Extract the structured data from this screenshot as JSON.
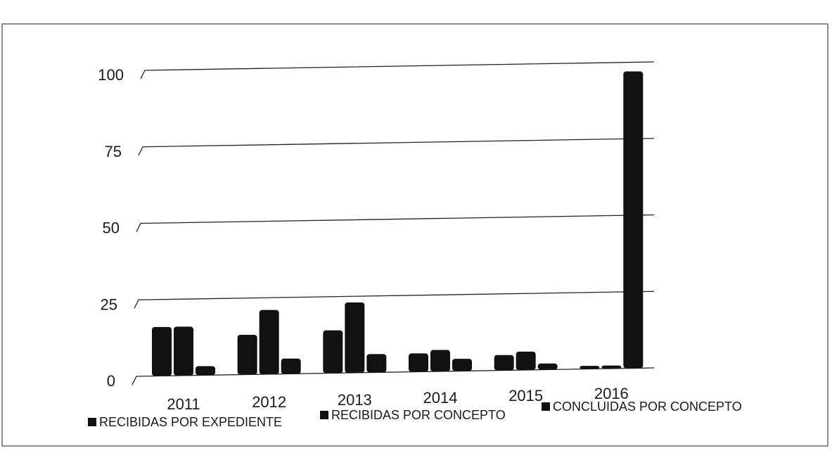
{
  "chart_data": {
    "type": "bar",
    "title": "",
    "xlabel": "",
    "ylabel": "",
    "categories": [
      "2011",
      "2012",
      "2013",
      "2014",
      "2015",
      "2016"
    ],
    "series": [
      {
        "name": "RECIBIDAS POR EXPEDIENTE",
        "values": [
          16,
          13,
          14,
          6,
          5,
          1
        ],
        "color": "#111111"
      },
      {
        "name": "RECIBIDAS POR CONCEPTO",
        "values": [
          16,
          21,
          23,
          7,
          6,
          1
        ],
        "color": "#111111"
      },
      {
        "name": "CONCLUIDAS POR CONCEPTO",
        "values": [
          3,
          5,
          6,
          4,
          2,
          97
        ],
        "color": "#111111"
      }
    ],
    "ylim": [
      0,
      100
    ],
    "yticks": [
      0,
      25,
      50,
      75,
      100
    ],
    "ytick_labels": [
      "0",
      "25",
      "50",
      "75",
      "100"
    ],
    "grid": true,
    "legend_position": "bottom"
  }
}
